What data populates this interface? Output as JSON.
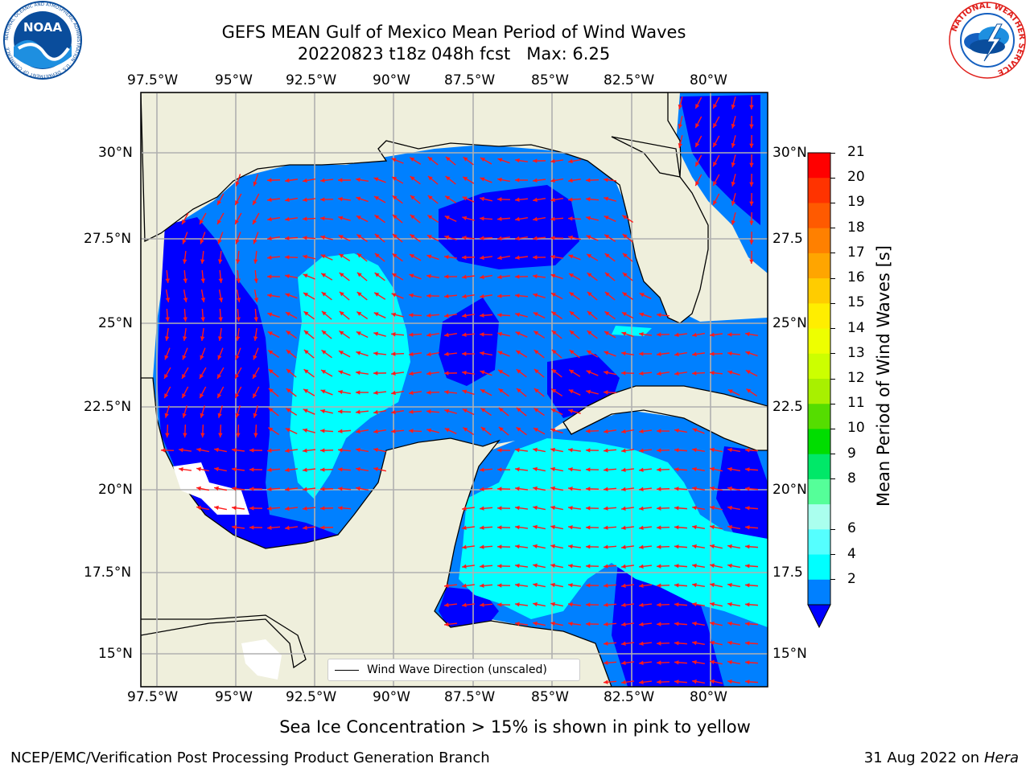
{
  "header": {
    "title_line1": "GEFS MEAN Gulf of Mexico Mean Period of Wind Waves",
    "title_line2": "20220823 t18z 048h fcst",
    "max_label": "Max: 6.25"
  },
  "logos": {
    "left": {
      "text": "NOAA",
      "ring_text": "NATIONAL OCEANIC AND ATMOSPHERIC ADMINISTRATION · U.S. DEPARTMENT OF COMMERCE",
      "color": "#0a4d9c"
    },
    "right": {
      "ring_text": "NATIONAL WEATHER SERVICE",
      "color": "#e0201c"
    }
  },
  "map": {
    "lon_ticks": [
      "97.5°W",
      "95°W",
      "92.5°W",
      "90°W",
      "87.5°W",
      "85°W",
      "82.5°W",
      "80°W"
    ],
    "lat_ticks_left": [
      "30°N",
      "27.5°N",
      "25°N",
      "22.5°N",
      "20°N",
      "17.5°N",
      "15°N"
    ],
    "lat_ticks_right": [
      "30°N",
      "27.5",
      "25°N",
      "22.5",
      "20°N",
      "17.5",
      "15°N"
    ],
    "land_color": "#efefdc",
    "arrow_color": "#ff1a1a",
    "legend_label": "Wind Wave Direction (unscaled)"
  },
  "colorbar": {
    "label": "Mean Period of Wind Waves [s]",
    "ticks": [
      "21",
      "20",
      "19",
      "18",
      "17",
      "16",
      "15",
      "14",
      "13",
      "12",
      "11",
      "10",
      "9",
      "8",
      "6",
      "4",
      "2"
    ],
    "colors": [
      "#ff0000",
      "#ff3300",
      "#ff5a00",
      "#ff8000",
      "#ffa500",
      "#ffcc00",
      "#ffee00",
      "#eeff00",
      "#ccff00",
      "#a8f000",
      "#55dd00",
      "#00dd00",
      "#00e868",
      "#55ff99",
      "#aaffee",
      "#55ffff",
      "#00ffff",
      "#0080ff"
    ],
    "extend_color": "#0000ff"
  },
  "footer": {
    "ice_note": "Sea Ice Concentration > 15% is shown in pink to yellow",
    "producer": "NCEP/EMC/Verification Post Processing Product Generation Branch",
    "date": "31 Aug 2022 on",
    "machine": "Hera"
  }
}
